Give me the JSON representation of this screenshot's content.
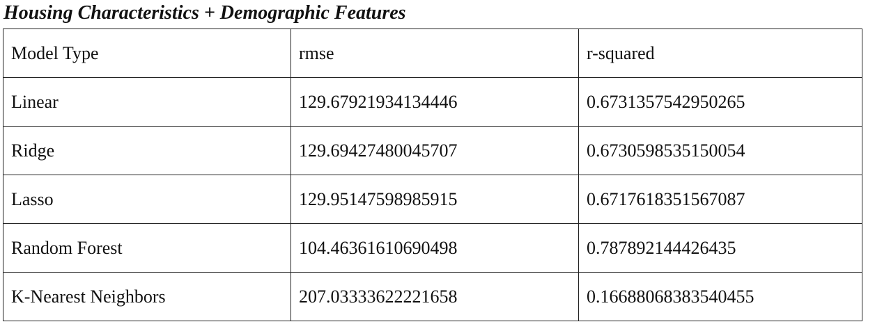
{
  "title": "Housing Characteristics + Demographic Features",
  "table": {
    "headers": [
      "Model Type",
      "rmse",
      "r-squared"
    ],
    "rows": [
      [
        "Linear",
        "129.67921934134446",
        "0.6731357542950265"
      ],
      [
        "Ridge",
        "129.69427480045707",
        "0.6730598535150054"
      ],
      [
        "Lasso",
        "129.95147598985915",
        "0.6717618351567087"
      ],
      [
        "Random Forest",
        "104.46361610690498",
        "0.787892144426435"
      ],
      [
        "K-Nearest Neighbors",
        "207.03333622221658",
        "0.16688068383540455"
      ]
    ]
  }
}
